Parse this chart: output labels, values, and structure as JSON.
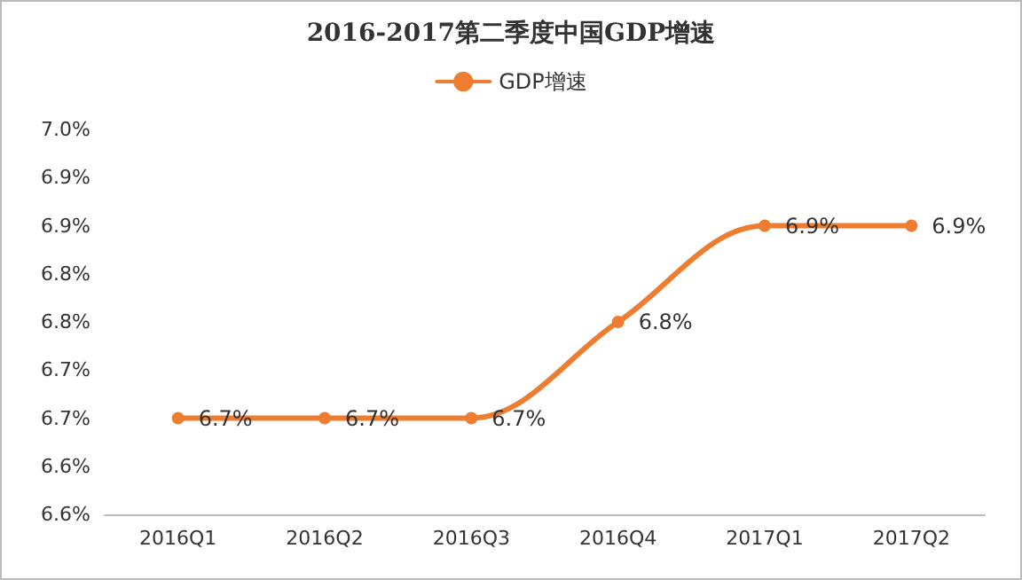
{
  "chart_data": {
    "type": "line",
    "title": "2016-2017第二季度中国GDP增速",
    "categories": [
      "2016Q1",
      "2016Q2",
      "2016Q3",
      "2016Q4",
      "2017Q1",
      "2017Q2"
    ],
    "series": [
      {
        "name": "GDP增速",
        "color": "#ed7d31",
        "values": [
          6.7,
          6.7,
          6.7,
          6.8,
          6.9,
          6.9
        ],
        "value_labels": [
          "6.7%",
          "6.7%",
          "6.7%",
          "6.8%",
          "6.9%",
          "6.9%"
        ]
      }
    ],
    "ylim": [
      6.6,
      7.0
    ],
    "yticks": [
      {
        "value": 6.6,
        "label": "6.6%"
      },
      {
        "value": 6.65,
        "label": "6.6%"
      },
      {
        "value": 6.7,
        "label": "6.7%"
      },
      {
        "value": 6.75,
        "label": "6.7%"
      },
      {
        "value": 6.8,
        "label": "6.8%"
      },
      {
        "value": 6.85,
        "label": "6.8%"
      },
      {
        "value": 6.9,
        "label": "6.9%"
      },
      {
        "value": 6.95,
        "label": "6.9%"
      },
      {
        "value": 7.0,
        "label": "7.0%"
      }
    ],
    "legend": "top",
    "marker": "circle",
    "line_style": "solid",
    "grid": false
  }
}
